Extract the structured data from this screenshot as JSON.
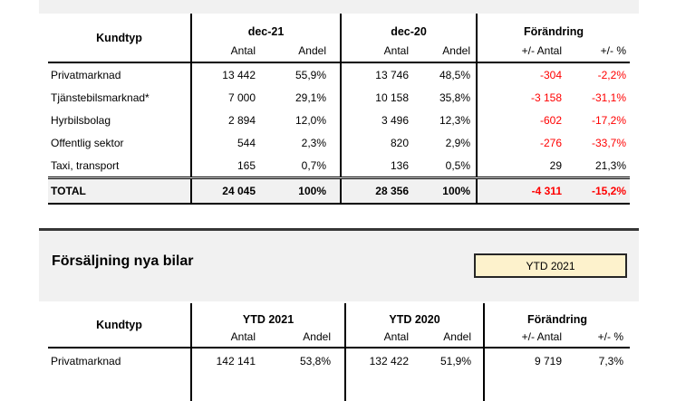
{
  "colors": {
    "negative_text": "#ff0000",
    "text": "#000000",
    "panel_background": "#f1f1f1",
    "total_row_background": "#f1f1f1",
    "badge_background": "#fdf2cc",
    "badge_border": "#262626",
    "table_line": "#000000"
  },
  "table1": {
    "corner": "Kundtyp",
    "groups": [
      {
        "label": "dec-21",
        "sub": [
          "Antal",
          "Andel"
        ]
      },
      {
        "label": "dec-20",
        "sub": [
          "Antal",
          "Andel"
        ]
      },
      {
        "label": "Förändring",
        "sub": [
          "+/- Antal",
          "+/- %"
        ]
      }
    ],
    "rows": [
      {
        "label": "Privatmarknad",
        "c1": "13 442",
        "c2": "55,9%",
        "c3": "13 746",
        "c4": "48,5%",
        "c5": "-304",
        "c6": "-2,2%"
      },
      {
        "label": "Tjänstebilsmarknad*",
        "c1": "7 000",
        "c2": "29,1%",
        "c3": "10 158",
        "c4": "35,8%",
        "c5": "-3 158",
        "c6": "-31,1%"
      },
      {
        "label": "Hyrbilsbolag",
        "c1": "2 894",
        "c2": "12,0%",
        "c3": "3 496",
        "c4": "12,3%",
        "c5": "-602",
        "c6": "-17,2%"
      },
      {
        "label": "Offentlig sektor",
        "c1": "544",
        "c2": "2,3%",
        "c3": "820",
        "c4": "2,9%",
        "c5": "-276",
        "c6": "-33,7%"
      },
      {
        "label": "Taxi, transport",
        "c1": "165",
        "c2": "0,7%",
        "c3": "136",
        "c4": "0,5%",
        "c5": "29",
        "c6": "21,3%"
      }
    ],
    "total": {
      "label": "TOTAL",
      "c1": "24 045",
      "c2": "100%",
      "c3": "28 356",
      "c4": "100%",
      "c5": "-4 311",
      "c6": "-15,2%"
    }
  },
  "section2": {
    "title": "Försäljning nya bilar",
    "badge": "YTD 2021"
  },
  "table2": {
    "corner": "Kundtyp",
    "groups": [
      {
        "label": "YTD 2021",
        "sub": [
          "Antal",
          "Andel"
        ]
      },
      {
        "label": "YTD 2020",
        "sub": [
          "Antal",
          "Andel"
        ]
      },
      {
        "label": "Förändring",
        "sub": [
          "+/- Antal",
          "+/- %"
        ]
      }
    ],
    "rows": [
      {
        "label": "Privatmarknad",
        "c1": "142 141",
        "c2": "53,8%",
        "c3": "132 422",
        "c4": "51,9%",
        "c5": "9 719",
        "c6": "7,3%"
      }
    ]
  }
}
